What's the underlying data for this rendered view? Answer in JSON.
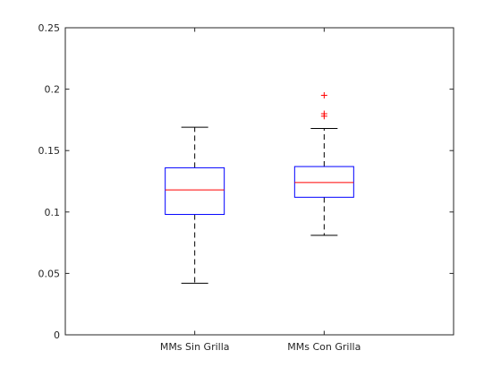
{
  "chart_data": {
    "type": "box",
    "categories": [
      "MMs Sin Grilla",
      "MMs Con Grilla"
    ],
    "ylim": [
      0,
      0.25
    ],
    "yticks": [
      "0",
      "0.05",
      "0.1",
      "0.15",
      "0.2",
      "0.25"
    ],
    "yticks_values": [
      0,
      0.05,
      0.1,
      0.15,
      0.2,
      0.25
    ],
    "grid": false,
    "legend": "none",
    "boxes": [
      {
        "whisker_low": 0.042,
        "q1": 0.098,
        "median": 0.118,
        "q3": 0.136,
        "whisker_high": 0.169,
        "outliers": []
      },
      {
        "whisker_low": 0.081,
        "q1": 0.112,
        "median": 0.124,
        "q3": 0.137,
        "whisker_high": 0.168,
        "outliers": [
          0.178,
          0.18,
          0.195
        ]
      }
    ],
    "colors": {
      "box": "#0000ff",
      "median": "#ff0000",
      "whisker": "#000000",
      "outlier": "#ff0000",
      "axis": "#262626"
    }
  }
}
